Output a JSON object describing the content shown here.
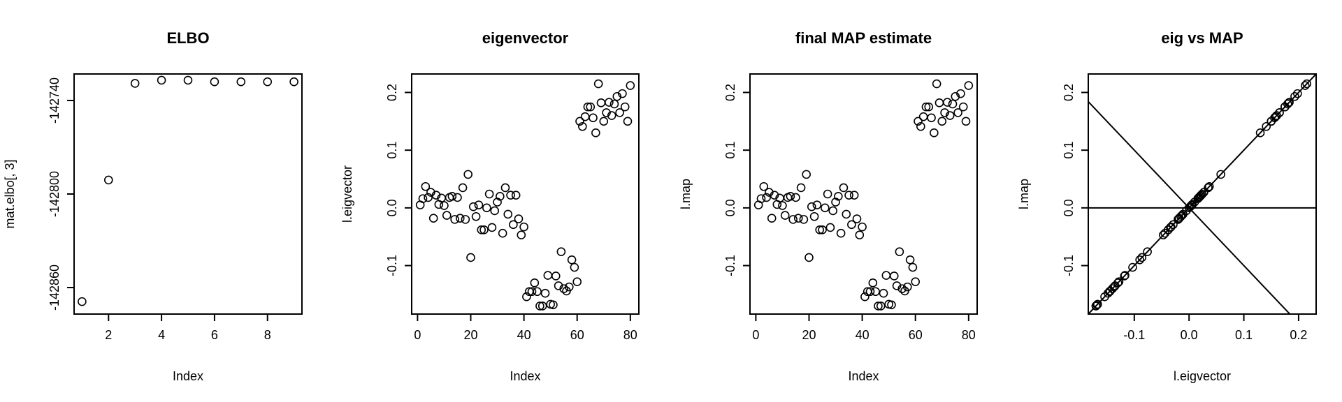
{
  "chart_data": [
    {
      "type": "scatter",
      "title": "ELBO",
      "xlabel": "Index",
      "ylabel": "mat.elbo[, 3]",
      "xlim": [
        0.7,
        9.3
      ],
      "ylim": [
        -142877,
        -142723
      ],
      "xticks": [
        2,
        4,
        6,
        8
      ],
      "yticks": [
        -142860,
        -142800,
        -142740
      ],
      "xtick_labels": [
        "2",
        "4",
        "6",
        "8"
      ],
      "ytick_labels": [
        "-142860",
        "-142800",
        "-142740"
      ],
      "x": [
        1,
        2,
        3,
        4,
        5,
        6,
        7,
        8,
        9
      ],
      "y": [
        -142869,
        -142791,
        -142729,
        -142727,
        -142727,
        -142728,
        -142728,
        -142728,
        -142728
      ]
    },
    {
      "type": "scatter",
      "title": "eigenvector",
      "xlabel": "Index",
      "ylabel": "l.eigvector",
      "xlim": [
        -2.2,
        83.2
      ],
      "ylim": [
        -0.184,
        0.232
      ],
      "xticks": [
        0,
        20,
        40,
        60,
        80
      ],
      "yticks": [
        -0.1,
        0.0,
        0.1,
        0.2
      ],
      "xtick_labels": [
        "0",
        "20",
        "40",
        "60",
        "80"
      ],
      "ytick_labels": [
        "-0.1",
        "0.0",
        "0.1",
        "0.2"
      ],
      "x": [
        1,
        2,
        3,
        4,
        5,
        6,
        7,
        8,
        9,
        10,
        11,
        12,
        13,
        14,
        15,
        16,
        17,
        18,
        19,
        20,
        21,
        22,
        23,
        24,
        25,
        26,
        27,
        28,
        29,
        30,
        31,
        32,
        33,
        34,
        35,
        36,
        37,
        38,
        39,
        40,
        41,
        42,
        43,
        44,
        45,
        46,
        47,
        48,
        49,
        50,
        51,
        52,
        53,
        54,
        55,
        56,
        57,
        58,
        59,
        60,
        61,
        62,
        63,
        64,
        65,
        66,
        67,
        68,
        69,
        70,
        71,
        72,
        73,
        74,
        75,
        76,
        77,
        78,
        79,
        80
      ],
      "y": [
        0.005,
        0.016,
        0.037,
        0.018,
        0.027,
        -0.018,
        0.022,
        0.006,
        0.017,
        0.004,
        -0.013,
        0.018,
        0.02,
        -0.02,
        0.018,
        -0.018,
        0.035,
        -0.02,
        0.058,
        -0.086,
        0.002,
        -0.015,
        0.005,
        -0.038,
        -0.038,
        0.0,
        0.024,
        -0.034,
        -0.005,
        0.01,
        0.02,
        -0.044,
        0.035,
        -0.011,
        0.022,
        -0.029,
        0.022,
        -0.019,
        -0.047,
        -0.033,
        -0.154,
        -0.145,
        -0.145,
        -0.13,
        -0.145,
        -0.17,
        -0.17,
        -0.148,
        -0.117,
        -0.167,
        -0.168,
        -0.118,
        -0.135,
        -0.076,
        -0.14,
        -0.144,
        -0.137,
        -0.09,
        -0.103,
        -0.128,
        0.15,
        0.141,
        0.158,
        0.175,
        0.175,
        0.156,
        0.13,
        0.215,
        0.182,
        0.15,
        0.165,
        0.183,
        0.16,
        0.18,
        0.193,
        0.165,
        0.198,
        0.175,
        0.15,
        0.212
      ]
    },
    {
      "type": "scatter",
      "title": "final MAP estimate",
      "xlabel": "Index",
      "ylabel": "l.map",
      "xlim": [
        -2.2,
        83.2
      ],
      "ylim": [
        -0.184,
        0.232
      ],
      "xticks": [
        0,
        20,
        40,
        60,
        80
      ],
      "yticks": [
        -0.1,
        0.0,
        0.1,
        0.2
      ],
      "xtick_labels": [
        "0",
        "20",
        "40",
        "60",
        "80"
      ],
      "ytick_labels": [
        "-0.1",
        "0.0",
        "0.1",
        "0.2"
      ],
      "x": [
        1,
        2,
        3,
        4,
        5,
        6,
        7,
        8,
        9,
        10,
        11,
        12,
        13,
        14,
        15,
        16,
        17,
        18,
        19,
        20,
        21,
        22,
        23,
        24,
        25,
        26,
        27,
        28,
        29,
        30,
        31,
        32,
        33,
        34,
        35,
        36,
        37,
        38,
        39,
        40,
        41,
        42,
        43,
        44,
        45,
        46,
        47,
        48,
        49,
        50,
        51,
        52,
        53,
        54,
        55,
        56,
        57,
        58,
        59,
        60,
        61,
        62,
        63,
        64,
        65,
        66,
        67,
        68,
        69,
        70,
        71,
        72,
        73,
        74,
        75,
        76,
        77,
        78,
        79,
        80
      ],
      "y": [
        0.005,
        0.016,
        0.037,
        0.018,
        0.027,
        -0.018,
        0.022,
        0.006,
        0.017,
        0.004,
        -0.013,
        0.018,
        0.02,
        -0.02,
        0.018,
        -0.018,
        0.035,
        -0.02,
        0.058,
        -0.086,
        0.002,
        -0.015,
        0.005,
        -0.038,
        -0.038,
        0.0,
        0.024,
        -0.034,
        -0.005,
        0.01,
        0.02,
        -0.044,
        0.035,
        -0.011,
        0.022,
        -0.029,
        0.022,
        -0.019,
        -0.047,
        -0.033,
        -0.154,
        -0.145,
        -0.145,
        -0.13,
        -0.145,
        -0.17,
        -0.17,
        -0.148,
        -0.117,
        -0.167,
        -0.168,
        -0.118,
        -0.135,
        -0.076,
        -0.14,
        -0.144,
        -0.137,
        -0.09,
        -0.103,
        -0.128,
        0.15,
        0.141,
        0.158,
        0.175,
        0.175,
        0.156,
        0.13,
        0.215,
        0.182,
        0.15,
        0.165,
        0.183,
        0.16,
        0.18,
        0.193,
        0.165,
        0.198,
        0.175,
        0.15,
        0.212
      ]
    },
    {
      "type": "scatter",
      "title": "eig vs MAP",
      "xlabel": "l.eigvector",
      "ylabel": "l.map",
      "xlim": [
        -0.184,
        0.232
      ],
      "ylim": [
        -0.184,
        0.232
      ],
      "xticks": [
        -0.1,
        0.0,
        0.1,
        0.2
      ],
      "yticks": [
        -0.1,
        0.0,
        0.1,
        0.2
      ],
      "xtick_labels": [
        "-0.1",
        "0.0",
        "0.1",
        "0.2"
      ],
      "ytick_labels": [
        "-0.1",
        "0.0",
        "0.1",
        "0.2"
      ],
      "x": [
        0.005,
        0.016,
        0.037,
        0.018,
        0.027,
        -0.018,
        0.022,
        0.006,
        0.017,
        0.004,
        -0.013,
        0.018,
        0.02,
        -0.02,
        0.018,
        -0.018,
        0.035,
        -0.02,
        0.058,
        -0.086,
        0.002,
        -0.015,
        0.005,
        -0.038,
        -0.038,
        0.0,
        0.024,
        -0.034,
        -0.005,
        0.01,
        0.02,
        -0.044,
        0.035,
        -0.011,
        0.022,
        -0.029,
        0.022,
        -0.019,
        -0.047,
        -0.033,
        -0.154,
        -0.145,
        -0.145,
        -0.13,
        -0.145,
        -0.17,
        -0.17,
        -0.148,
        -0.117,
        -0.167,
        -0.168,
        -0.118,
        -0.135,
        -0.076,
        -0.14,
        -0.144,
        -0.137,
        -0.09,
        -0.103,
        -0.128,
        0.15,
        0.141,
        0.158,
        0.175,
        0.175,
        0.156,
        0.13,
        0.215,
        0.182,
        0.15,
        0.165,
        0.183,
        0.16,
        0.18,
        0.193,
        0.165,
        0.198,
        0.175,
        0.15,
        0.212
      ],
      "y": [
        0.005,
        0.016,
        0.037,
        0.018,
        0.027,
        -0.018,
        0.022,
        0.006,
        0.017,
        0.004,
        -0.013,
        0.018,
        0.02,
        -0.02,
        0.018,
        -0.018,
        0.035,
        -0.02,
        0.058,
        -0.086,
        0.002,
        -0.015,
        0.005,
        -0.038,
        -0.038,
        0.0,
        0.024,
        -0.034,
        -0.005,
        0.01,
        0.02,
        -0.044,
        0.035,
        -0.011,
        0.022,
        -0.029,
        0.022,
        -0.019,
        -0.047,
        -0.033,
        -0.154,
        -0.145,
        -0.145,
        -0.13,
        -0.145,
        -0.17,
        -0.17,
        -0.148,
        -0.117,
        -0.167,
        -0.168,
        -0.118,
        -0.135,
        -0.076,
        -0.14,
        -0.144,
        -0.137,
        -0.09,
        -0.103,
        -0.128,
        0.15,
        0.141,
        0.158,
        0.175,
        0.175,
        0.156,
        0.13,
        0.215,
        0.182,
        0.15,
        0.165,
        0.183,
        0.16,
        0.18,
        0.193,
        0.165,
        0.198,
        0.175,
        0.15,
        0.212
      ],
      "reference_lines": [
        {
          "kind": "abline",
          "intercept": 0,
          "slope": 1
        },
        {
          "kind": "abline",
          "intercept": 0,
          "slope": -1
        },
        {
          "kind": "hline",
          "y": 0
        }
      ]
    }
  ]
}
